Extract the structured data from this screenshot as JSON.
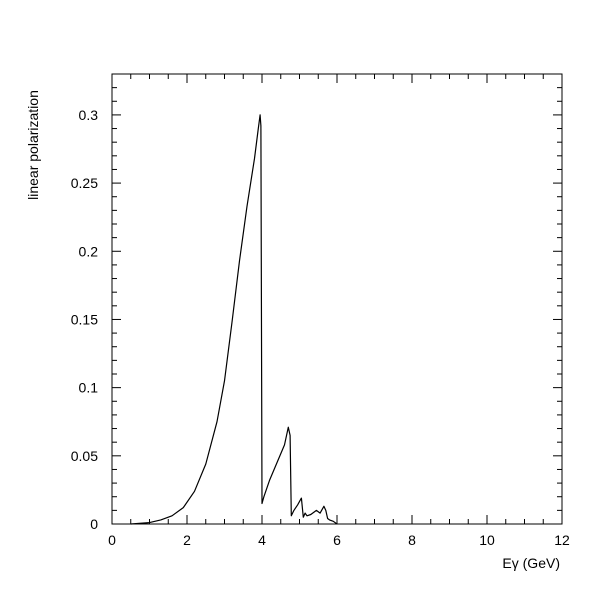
{
  "chart_data": {
    "type": "line",
    "title": "",
    "xlabel": "Eγ (GeV)",
    "ylabel": "linear polarization",
    "xlim": [
      0,
      12
    ],
    "ylim": [
      0,
      0.33
    ],
    "grid": false,
    "x_ticks": [
      0,
      2,
      4,
      6,
      8,
      10,
      12
    ],
    "x_tick_labels": [
      "0",
      "2",
      "4",
      "6",
      "8",
      "10",
      "12"
    ],
    "y_ticks": [
      0,
      0.05,
      0.1,
      0.15,
      0.2,
      0.25,
      0.3
    ],
    "y_tick_labels": [
      "0",
      "0.05",
      "0.1",
      "0.15",
      "0.2",
      "0.25",
      "0.3"
    ],
    "series": [
      {
        "color": "#000000",
        "x": [
          0.5,
          1.0,
          1.3,
          1.6,
          1.9,
          2.2,
          2.5,
          2.8,
          3.0,
          3.2,
          3.4,
          3.6,
          3.8,
          3.9,
          3.95,
          3.97,
          4.0,
          4.05,
          4.2,
          4.4,
          4.6,
          4.7,
          4.75,
          4.78,
          4.85,
          4.95,
          5.05,
          5.1,
          5.15,
          5.2,
          5.3,
          5.45,
          5.55,
          5.65,
          5.7,
          5.75,
          5.8,
          5.9,
          6.0
        ],
        "y": [
          0.0,
          0.001,
          0.003,
          0.006,
          0.012,
          0.024,
          0.044,
          0.075,
          0.105,
          0.148,
          0.193,
          0.233,
          0.268,
          0.29,
          0.3,
          0.292,
          0.015,
          0.02,
          0.032,
          0.045,
          0.058,
          0.071,
          0.065,
          0.006,
          0.01,
          0.014,
          0.019,
          0.005,
          0.008,
          0.006,
          0.007,
          0.01,
          0.008,
          0.013,
          0.01,
          0.004,
          0.003,
          0.002,
          0.0
        ]
      }
    ]
  }
}
